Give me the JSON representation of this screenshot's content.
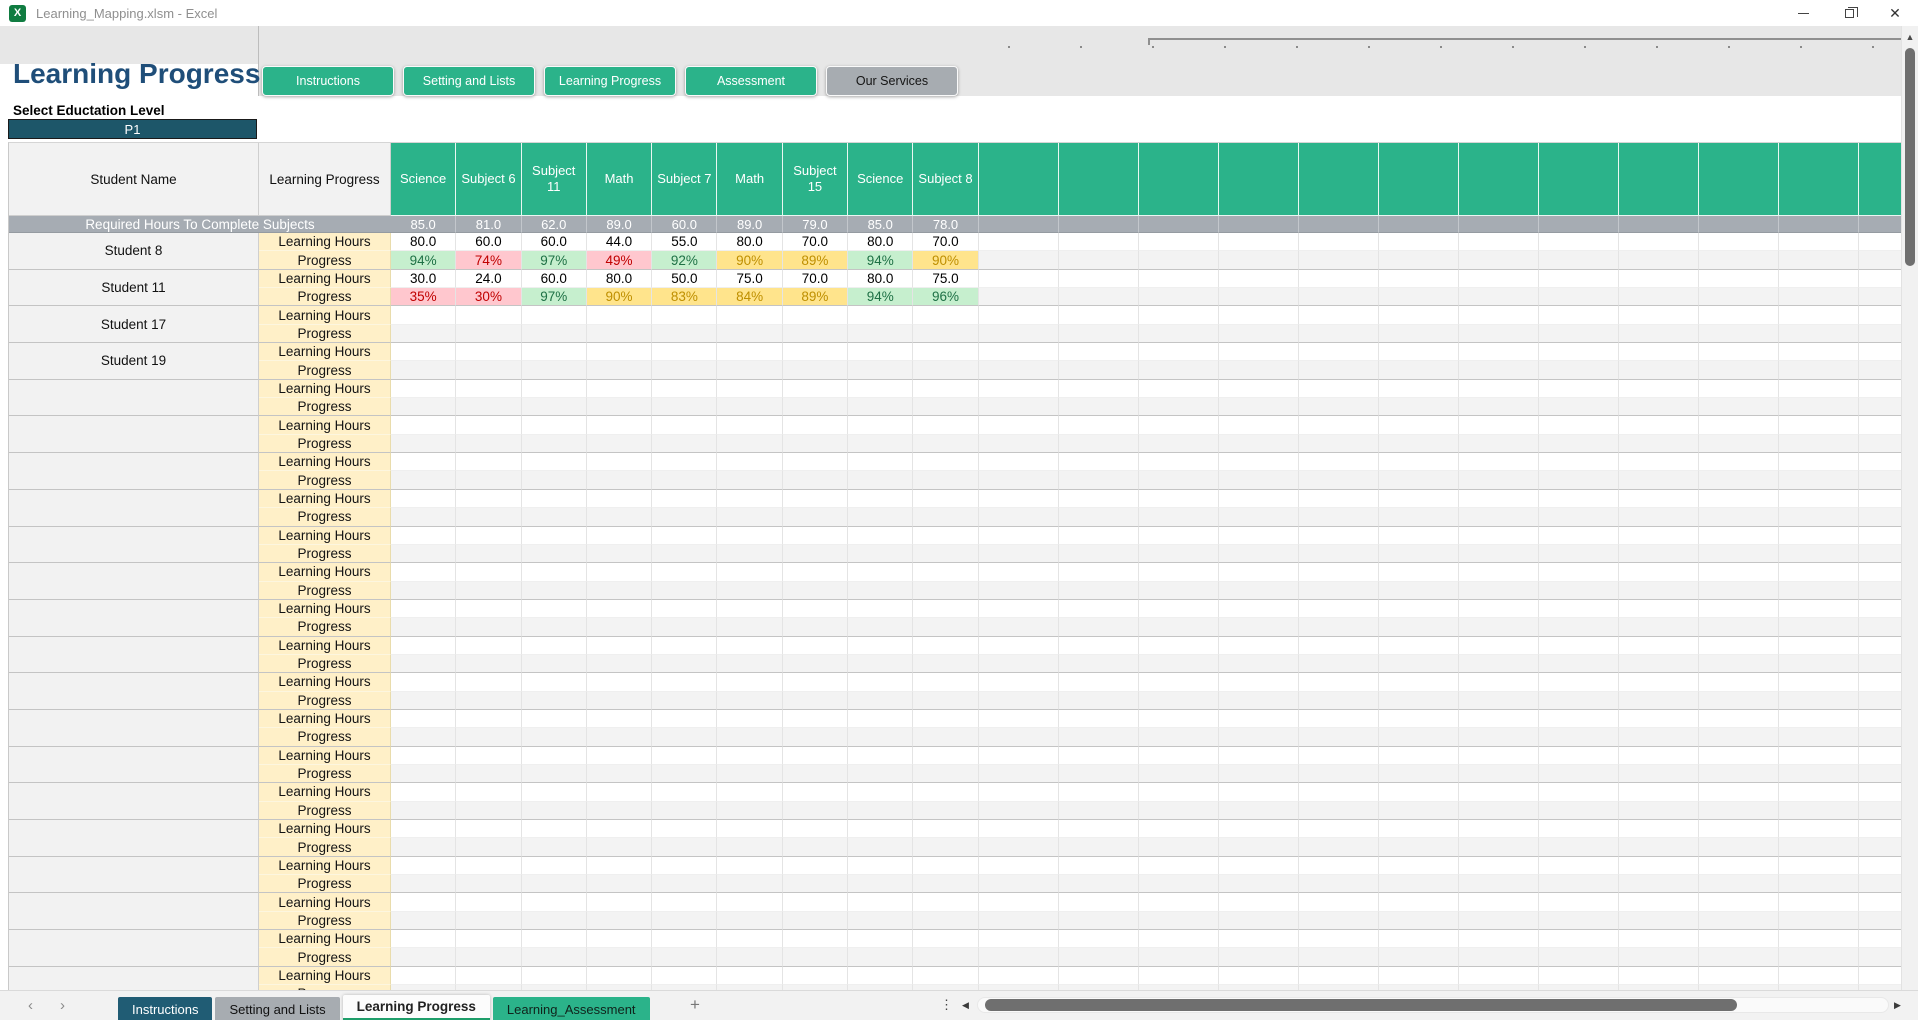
{
  "window": {
    "title": "Learning_Mapping.xlsm - Excel"
  },
  "panel": {
    "title": "Learning Progress",
    "select_label": "Select Eductation Level",
    "selected_level": "P1"
  },
  "nav_buttons": [
    {
      "label": "Instructions",
      "variant": "green"
    },
    {
      "label": "Setting and Lists",
      "variant": "green"
    },
    {
      "label": "Learning Progress",
      "variant": "green"
    },
    {
      "label": "Assessment",
      "variant": "green"
    },
    {
      "label": "Our Services",
      "variant": "gray"
    }
  ],
  "table": {
    "columns": {
      "student": "Student Name",
      "progress": "Learning Progress",
      "subjects": [
        "Science",
        "Subject 6",
        "Subject 11",
        "Math",
        "Subject 7",
        "Math",
        "Subject 15",
        "Science",
        "Subject 8"
      ],
      "empty_subject_columns": 12
    },
    "required": {
      "label": "Required Hours To Complete Subjects",
      "values": [
        "85.0",
        "81.0",
        "62.0",
        "89.0",
        "60.0",
        "89.0",
        "79.0",
        "85.0",
        "78.0"
      ]
    },
    "row_labels": {
      "hours": "Learning Hours",
      "progress": "Progress"
    },
    "students": [
      {
        "name": "Student 8",
        "hours": [
          "80.0",
          "60.0",
          "60.0",
          "44.0",
          "55.0",
          "80.0",
          "70.0",
          "80.0",
          "70.0"
        ],
        "progress": [
          {
            "v": "94%",
            "s": "good"
          },
          {
            "v": "74%",
            "s": "bad"
          },
          {
            "v": "97%",
            "s": "good"
          },
          {
            "v": "49%",
            "s": "bad"
          },
          {
            "v": "92%",
            "s": "good"
          },
          {
            "v": "90%",
            "s": "neutral"
          },
          {
            "v": "89%",
            "s": "neutral"
          },
          {
            "v": "94%",
            "s": "good"
          },
          {
            "v": "90%",
            "s": "neutral"
          }
        ]
      },
      {
        "name": "Student 11",
        "hours": [
          "30.0",
          "24.0",
          "60.0",
          "80.0",
          "50.0",
          "75.0",
          "70.0",
          "80.0",
          "75.0"
        ],
        "progress": [
          {
            "v": "35%",
            "s": "bad"
          },
          {
            "v": "30%",
            "s": "bad"
          },
          {
            "v": "97%",
            "s": "good"
          },
          {
            "v": "90%",
            "s": "neutral"
          },
          {
            "v": "83%",
            "s": "neutral"
          },
          {
            "v": "84%",
            "s": "neutral"
          },
          {
            "v": "89%",
            "s": "neutral"
          },
          {
            "v": "94%",
            "s": "good"
          },
          {
            "v": "96%",
            "s": "good"
          }
        ]
      },
      {
        "name": "Student 17",
        "hours": [],
        "progress": []
      },
      {
        "name": "Student 19",
        "hours": [],
        "progress": []
      }
    ],
    "empty_student_blocks": 17
  },
  "sheet_bar": {
    "tabs": [
      {
        "label": "Instructions",
        "variant": "dark"
      },
      {
        "label": "Setting and Lists",
        "variant": "gray"
      },
      {
        "label": "Learning Progress",
        "variant": "active"
      },
      {
        "label": "Learning_Assessment",
        "variant": "green"
      }
    ],
    "add_sheet_label": "+"
  },
  "colors": {
    "accent_green": "#2BB38A",
    "dark_teal": "#1D5669",
    "title_blue": "#1F4E79",
    "required_gray": "#A6ACB3",
    "label_cream": "#FFF0C8",
    "good_bg": "#C6EFCE",
    "good_text": "#1E7145",
    "bad_bg": "#FFC7CE",
    "bad_text": "#C00000",
    "neutral_bg": "#FFE48C",
    "neutral_text": "#BF8F00"
  }
}
